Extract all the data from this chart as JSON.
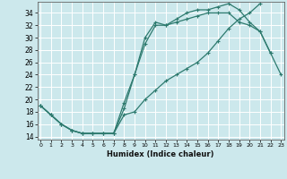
{
  "xlabel": "Humidex (Indice chaleur)",
  "bg_color": "#cce8ec",
  "grid_color": "#ffffff",
  "line_color": "#2d7a6e",
  "line1": {
    "x": [
      0,
      1,
      2,
      3,
      4,
      5,
      6,
      7,
      8,
      9,
      10,
      11,
      12,
      13,
      14,
      15,
      16,
      17,
      18,
      19,
      20,
      21,
      22,
      23
    ],
    "y": [
      19,
      17.5,
      16,
      15,
      14.5,
      14.5,
      14.5,
      14.5,
      19.5,
      24,
      30,
      32.5,
      32,
      33,
      34,
      34.5,
      34.5,
      35,
      35.5,
      34.5,
      32.5,
      31,
      27.5,
      24
    ]
  },
  "line2": {
    "x": [
      0,
      1,
      2,
      3,
      4,
      5,
      6,
      7,
      8,
      9,
      10,
      11,
      12,
      13,
      14,
      15,
      16,
      17,
      18,
      19,
      20,
      21,
      22,
      23
    ],
    "y": [
      19,
      17.5,
      16,
      15,
      14.5,
      14.5,
      14.5,
      14.5,
      18.5,
      24,
      29,
      32,
      32,
      32.5,
      33,
      33.5,
      34,
      34,
      34,
      32.5,
      32,
      31,
      27.5,
      null
    ]
  },
  "line3": {
    "x": [
      0,
      1,
      2,
      3,
      4,
      5,
      6,
      7,
      8,
      9,
      10,
      11,
      12,
      13,
      14,
      15,
      16,
      17,
      18,
      19,
      20,
      21,
      22,
      23
    ],
    "y": [
      19,
      17.5,
      16,
      15,
      14.5,
      14.5,
      14.5,
      14.5,
      17.5,
      18,
      20,
      21.5,
      23,
      24,
      25,
      26,
      27.5,
      29.5,
      31.5,
      33,
      34,
      35.5,
      null,
      null
    ]
  },
  "xlim": [
    -0.3,
    23.3
  ],
  "ylim": [
    13.5,
    35.8
  ],
  "yticks": [
    14,
    16,
    18,
    20,
    22,
    24,
    26,
    28,
    30,
    32,
    34
  ],
  "xticks": [
    0,
    1,
    2,
    3,
    4,
    5,
    6,
    7,
    8,
    9,
    10,
    11,
    12,
    13,
    14,
    15,
    16,
    17,
    18,
    19,
    20,
    21,
    22,
    23
  ]
}
